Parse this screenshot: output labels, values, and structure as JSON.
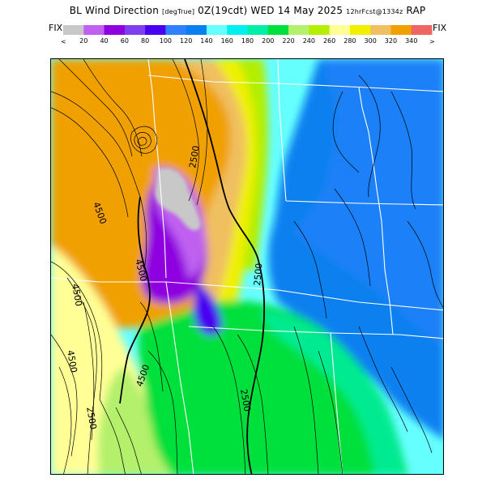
{
  "header": {
    "title": "BL Wind Direction",
    "units": "[degTrue]",
    "valid_time": "0Z(19cdt)",
    "valid_date": "WED 14 May 2025",
    "forecast_info": "12hrFcst@1334z",
    "model": "RAP"
  },
  "colorbar": {
    "fix_label_left": "FIX",
    "fix_label_right": "FIX",
    "under_symbol": "<",
    "over_symbol": ">",
    "ticks": [
      "20",
      "40",
      "60",
      "80",
      "100",
      "120",
      "140",
      "160",
      "180",
      "200",
      "220",
      "240",
      "260",
      "280",
      "300",
      "320",
      "340"
    ],
    "colors": [
      "#c8c8c8",
      "#bf60f0",
      "#8f00e0",
      "#7e3fef",
      "#4a00f0",
      "#2f80ff",
      "#0a80f0",
      "#66ffff",
      "#00f0f0",
      "#00eea6",
      "#00e03c",
      "#b4f06c",
      "#b4ee00",
      "#ffff96",
      "#f0f000",
      "#f0c060",
      "#f0a000",
      "#f06464"
    ]
  },
  "map": {
    "contour_labels": [
      "4500",
      "4500",
      "4500",
      "4500",
      "4500",
      "2500",
      "2500",
      "2500",
      "2500"
    ]
  }
}
